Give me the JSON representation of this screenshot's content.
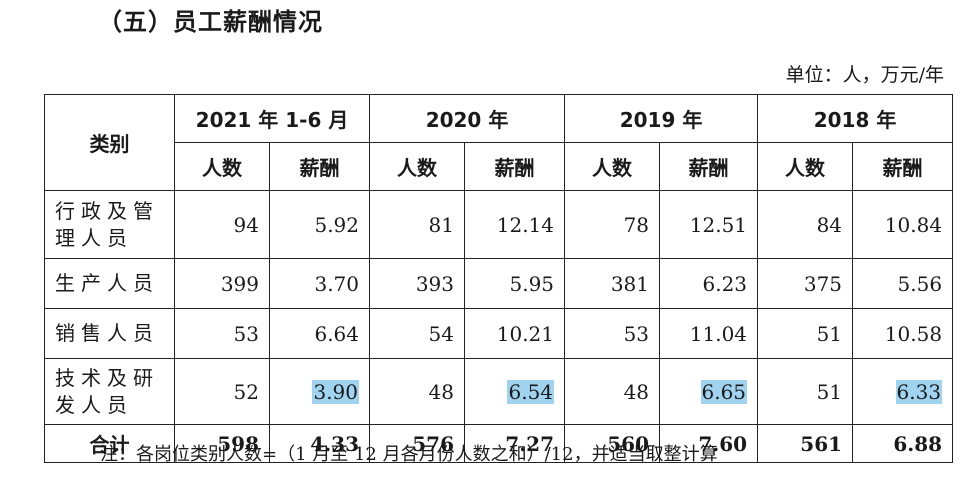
{
  "title": "（五）员工薪酬情况",
  "unit": "单位：人，万元/年",
  "table": {
    "category_header": "类别",
    "periods": [
      "2021 年 1-6 月",
      "2020 年",
      "2019 年",
      "2018 年"
    ],
    "sub_headers": [
      "人数",
      "薪酬"
    ],
    "rows": [
      {
        "label_line1": "行政及管",
        "label_line2": "理人员",
        "cells": [
          "94",
          "5.92",
          "81",
          "12.14",
          "78",
          "12.51",
          "84",
          "10.84"
        ]
      },
      {
        "label_line1": "生产人员",
        "label_line2": "",
        "cells": [
          "399",
          "3.70",
          "393",
          "5.95",
          "381",
          "6.23",
          "375",
          "5.56"
        ]
      },
      {
        "label_line1": "销售人员",
        "label_line2": "",
        "cells": [
          "53",
          "6.64",
          "54",
          "10.21",
          "53",
          "11.04",
          "51",
          "10.58"
        ]
      },
      {
        "label_line1": "技术及研",
        "label_line2": "发人员",
        "cells": [
          "52",
          "3.90",
          "48",
          "6.54",
          "48",
          "6.65",
          "51",
          "6.33"
        ]
      }
    ],
    "total": {
      "label": "合计",
      "cells": [
        "598",
        "4.33",
        "576",
        "7.27",
        "560",
        "7.60",
        "561",
        "6.88"
      ]
    },
    "highlight_color": "#9fd3ef"
  },
  "note": "注：各岗位类别人数=（1 月至 12 月各月份人数之和）/12，并适当取整计算"
}
